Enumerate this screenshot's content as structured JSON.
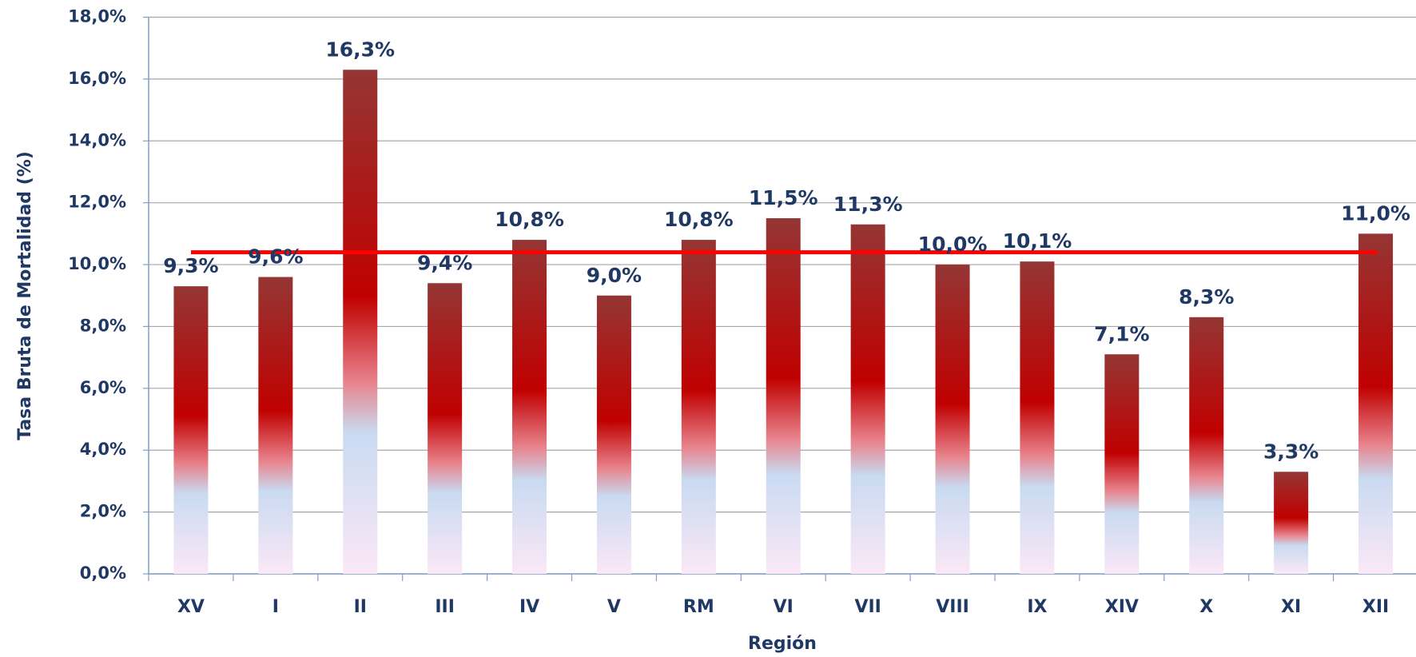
{
  "chart_data": {
    "type": "bar",
    "y_label": "Tasa Bruta de Mortalidad (%)",
    "x_label": "Región",
    "categories": [
      "XV",
      "I",
      "II",
      "III",
      "IV",
      "V",
      "RM",
      "VI",
      "VII",
      "VIII",
      "IX",
      "XIV",
      "X",
      "XI",
      "XII"
    ],
    "values": [
      9.3,
      9.6,
      16.3,
      9.4,
      10.8,
      9.0,
      10.8,
      11.5,
      11.3,
      10.0,
      10.1,
      7.1,
      8.3,
      3.3,
      11.0
    ],
    "value_labels": [
      "9,3%",
      "9,6%",
      "16,3%",
      "9,4%",
      "10,8%",
      "9,0%",
      "10,8%",
      "11,5%",
      "11,3%",
      "10,0%",
      "10,1%",
      "7,1%",
      "8,3%",
      "3,3%",
      "11,0%"
    ],
    "color": "#c00000",
    "reference_line": {
      "value": 10.4,
      "color": "#ff0000"
    },
    "ylim": [
      0,
      18
    ],
    "yticks": [
      {
        "value": 0,
        "label": "0,0%"
      },
      {
        "value": 2,
        "label": "2,0%"
      },
      {
        "value": 4,
        "label": "4,0%"
      },
      {
        "value": 6,
        "label": "6,0%"
      },
      {
        "value": 8,
        "label": "8,0%"
      },
      {
        "value": 10,
        "label": "10,0%"
      },
      {
        "value": 12,
        "label": "12,0%"
      },
      {
        "value": 14,
        "label": "14,0%"
      },
      {
        "value": 16,
        "label": "16,0%"
      },
      {
        "value": 18,
        "label": "18,0%"
      }
    ],
    "grid": true
  }
}
